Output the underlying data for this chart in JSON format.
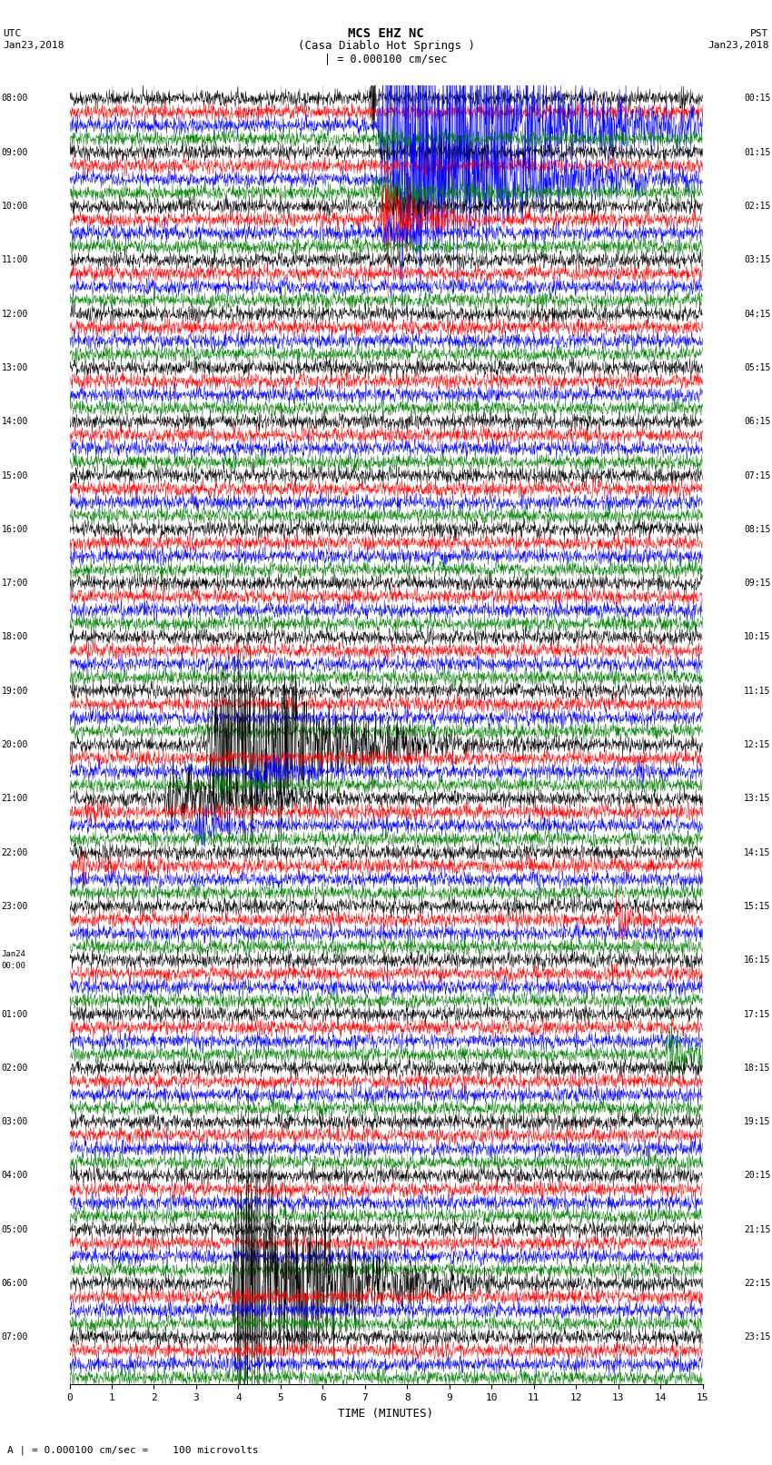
{
  "title_line1": "MCS EHZ NC",
  "title_line2": "(Casa Diablo Hot Springs )",
  "scale_label": "| = 0.000100 cm/sec",
  "xlabel": "TIME (MINUTES)",
  "footer": "A | = 0.000100 cm/sec =    100 microvolts",
  "xlim": [
    0,
    15
  ],
  "xticks": [
    0,
    1,
    2,
    3,
    4,
    5,
    6,
    7,
    8,
    9,
    10,
    11,
    12,
    13,
    14,
    15
  ],
  "bg_color": "#ffffff",
  "trace_colors": [
    "#000000",
    "#ff0000",
    "#0000ff",
    "#008000"
  ],
  "n_hours": 24,
  "n_traces_per_hour": 4,
  "fig_width": 8.5,
  "fig_height": 16.13,
  "left_times": [
    "08:00",
    "",
    "",
    "",
    "09:00",
    "",
    "",
    "",
    "10:00",
    "",
    "",
    "",
    "11:00",
    "",
    "",
    "",
    "12:00",
    "",
    "",
    "",
    "13:00",
    "",
    "",
    "",
    "14:00",
    "",
    "",
    "",
    "15:00",
    "",
    "",
    "",
    "16:00",
    "",
    "",
    "",
    "17:00",
    "",
    "",
    "",
    "18:00",
    "",
    "",
    "",
    "19:00",
    "",
    "",
    "",
    "20:00",
    "",
    "",
    "",
    "21:00",
    "",
    "",
    "",
    "22:00",
    "",
    "",
    "",
    "23:00",
    "",
    "",
    "",
    "Jan24\n00:00",
    "",
    "",
    "",
    "01:00",
    "",
    "",
    "",
    "02:00",
    "",
    "",
    "",
    "03:00",
    "",
    "",
    "",
    "04:00",
    "",
    "",
    "",
    "05:00",
    "",
    "",
    "",
    "06:00",
    "",
    "",
    "",
    "07:00",
    "",
    "",
    ""
  ],
  "right_times": [
    "00:15",
    "",
    "",
    "",
    "01:15",
    "",
    "",
    "",
    "02:15",
    "",
    "",
    "",
    "03:15",
    "",
    "",
    "",
    "04:15",
    "",
    "",
    "",
    "05:15",
    "",
    "",
    "",
    "06:15",
    "",
    "",
    "",
    "07:15",
    "",
    "",
    "",
    "08:15",
    "",
    "",
    "",
    "09:15",
    "",
    "",
    "",
    "10:15",
    "",
    "",
    "",
    "11:15",
    "",
    "",
    "",
    "12:15",
    "",
    "",
    "",
    "13:15",
    "",
    "",
    "",
    "14:15",
    "",
    "",
    "",
    "15:15",
    "",
    "",
    "",
    "16:15",
    "",
    "",
    "",
    "17:15",
    "",
    "",
    "",
    "18:15",
    "",
    "",
    "",
    "19:15",
    "",
    "",
    "",
    "20:15",
    "",
    "",
    "",
    "21:15",
    "",
    "",
    "",
    "22:15",
    "",
    "",
    "",
    "23:15",
    "",
    "",
    ""
  ]
}
